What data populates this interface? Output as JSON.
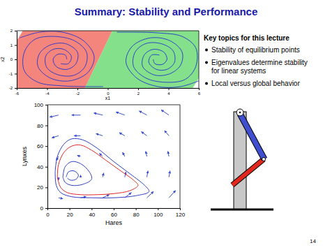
{
  "slide": {
    "title": "Summary: Stability and Performance",
    "topics_heading": "Key topics for this lecture",
    "bullets": [
      "Stability of equilibrium points",
      "Eigenvalues determine stability for linear systems",
      "Local versus global behavior"
    ],
    "page_number": 14
  },
  "chart_data": [
    {
      "type": "streamplot",
      "xlabel": "x1",
      "ylabel": "x2",
      "xlim": [
        -6,
        6
      ],
      "ylim": [
        -2,
        2
      ],
      "xticks": [
        -6,
        -4,
        -2,
        0,
        2,
        4,
        6
      ],
      "yticks": [
        -2,
        -1,
        0,
        1,
        2
      ],
      "grid": false,
      "regions": [
        {
          "color": "#f4857c",
          "x": [
            -5.6,
            0.3,
            -1.5,
            -6,
            -6
          ],
          "y": [
            2,
            2,
            -2,
            -2,
            1.3
          ]
        },
        {
          "color": "#84e08a",
          "x": [
            0.3,
            6,
            6,
            5.6,
            -1.5
          ],
          "y": [
            2,
            2,
            -1.3,
            -2,
            -2
          ]
        }
      ],
      "series": [
        {
          "color": "#2233cc",
          "x": [
            -5.8,
            -4.5,
            -3,
            -1.6,
            -0.9,
            -1.3,
            -2.5,
            -3.8,
            -4.6,
            -4.5,
            -3.8,
            -2.8,
            -2,
            -2.1,
            -2.7,
            -3.4,
            -3.6,
            -3.3,
            -2.8,
            -2.7
          ],
          "values": [
            1.5,
            1.9,
            1.9,
            1.3,
            0.2,
            -0.9,
            -1.5,
            -1.3,
            -0.5,
            0.4,
            1,
            1.1,
            0.5,
            -0.3,
            -0.7,
            -0.5,
            0,
            0.35,
            0.3,
            0
          ]
        },
        {
          "color": "#2233cc",
          "x": [
            -0.3,
            -1.5,
            -3,
            -4.6,
            -5.5,
            -5.5,
            -4.8,
            -3.5,
            -2.2,
            -1.4,
            -1.5,
            -2.2,
            -3.2,
            -4,
            -4.1,
            -3.6,
            -2.9,
            -2.4,
            -2.6,
            -3.1
          ],
          "values": [
            -1.9,
            -1.9,
            -1.85,
            -1.6,
            -0.8,
            0.5,
            1.4,
            1.6,
            1.3,
            0.5,
            -0.5,
            -1.1,
            -1.1,
            -0.6,
            0.2,
            0.7,
            0.7,
            0.2,
            -0.3,
            -0.3
          ]
        },
        {
          "color": "#2233cc",
          "x": [
            6,
            4.8,
            3.3,
            1.9,
            1.2,
            1.6,
            2.8,
            4.1,
            4.9,
            4.8,
            4.1,
            3.1,
            2.3,
            2.4,
            3,
            3.7,
            3.9,
            3.6,
            3.1,
            3
          ],
          "values": [
            -1.5,
            -1.9,
            -1.9,
            -1.3,
            -0.2,
            0.9,
            1.5,
            1.3,
            0.5,
            -0.4,
            -1,
            -1.1,
            -0.5,
            0.3,
            0.7,
            0.5,
            0,
            -0.35,
            -0.3,
            0
          ]
        },
        {
          "color": "#2233cc",
          "x": [
            0.6,
            1.8,
            3.3,
            4.9,
            5.8,
            5.8,
            5.1,
            3.8,
            2.5,
            1.7,
            1.8,
            2.5,
            3.5,
            4.3,
            4.4,
            3.9,
            3.2,
            2.7,
            2.9,
            3.4
          ],
          "values": [
            1.9,
            1.9,
            1.85,
            1.6,
            0.8,
            -0.5,
            -1.4,
            -1.6,
            -1.3,
            -0.5,
            0.5,
            1.1,
            1.1,
            0.6,
            -0.2,
            -0.7,
            -0.7,
            -0.2,
            0.3,
            0.3
          ]
        }
      ]
    },
    {
      "type": "quiver",
      "xlabel": "Hares",
      "ylabel": "Lynxes",
      "xlim": [
        0,
        120
      ],
      "ylim": [
        0,
        100
      ],
      "xticks": [
        0,
        20,
        40,
        60,
        80,
        100,
        120
      ],
      "yticks": [
        0,
        20,
        40,
        60,
        80,
        100
      ],
      "grid": false,
      "arrows": {
        "color": "#3a4fd0",
        "x": [
          10,
          30,
          50,
          70,
          90,
          110,
          10,
          30,
          50,
          70,
          90,
          110,
          10,
          30,
          50,
          70,
          90,
          110,
          10,
          30,
          50,
          70,
          90,
          110,
          10,
          30,
          50,
          70,
          90,
          110
        ],
        "y": [
          10,
          10,
          10,
          10,
          10,
          10,
          30,
          30,
          30,
          30,
          30,
          30,
          50,
          50,
          50,
          50,
          50,
          50,
          70,
          70,
          70,
          70,
          70,
          70,
          90,
          90,
          90,
          90,
          90,
          90
        ],
        "u": [
          4,
          5,
          6,
          6,
          6,
          6,
          0,
          0,
          1,
          1,
          1,
          1,
          -2,
          -3,
          -3,
          -2,
          -1,
          -1,
          -6,
          -6,
          -6,
          -5,
          -5,
          -4,
          -8,
          -8,
          -8,
          -8,
          -7,
          -7
        ],
        "v": [
          -1,
          1,
          3,
          5,
          6,
          7,
          -3,
          2,
          4,
          5,
          6,
          6,
          -4,
          1,
          3,
          4,
          5,
          5,
          -2,
          0,
          2,
          3,
          4,
          5,
          -2,
          0,
          2,
          3,
          4,
          5
        ]
      },
      "series": [
        {
          "color": "#2f3fc4",
          "x": [
            7,
            9,
            15,
            22,
            32,
            45,
            60,
            75,
            88,
            92,
            80,
            60,
            40,
            22,
            12,
            8,
            7
          ],
          "values": [
            35,
            50,
            62,
            67,
            66,
            58,
            45,
            33,
            22,
            16,
            12,
            10,
            10,
            11,
            15,
            22,
            35
          ]
        },
        {
          "color": "#2f3fc4",
          "x": [
            14,
            16,
            22,
            30,
            38,
            40,
            32,
            22,
            16,
            14
          ],
          "values": [
            30,
            40,
            45,
            43,
            35,
            28,
            23,
            22,
            25,
            30
          ]
        },
        {
          "color": "#2f3fc4",
          "x": [
            17,
            19,
            24,
            28,
            26,
            21,
            18
          ],
          "values": [
            30,
            35,
            36,
            32,
            28,
            27,
            29
          ]
        },
        {
          "color": "#e02828",
          "x": [
            9,
            10,
            15,
            22,
            30,
            40,
            52,
            65,
            78,
            82,
            75,
            60,
            45,
            30,
            18,
            12,
            9
          ],
          "values": [
            30,
            42,
            54,
            60,
            61,
            56,
            47,
            37,
            27,
            22,
            17,
            14,
            13,
            13,
            15,
            20,
            30
          ]
        }
      ]
    }
  ]
}
